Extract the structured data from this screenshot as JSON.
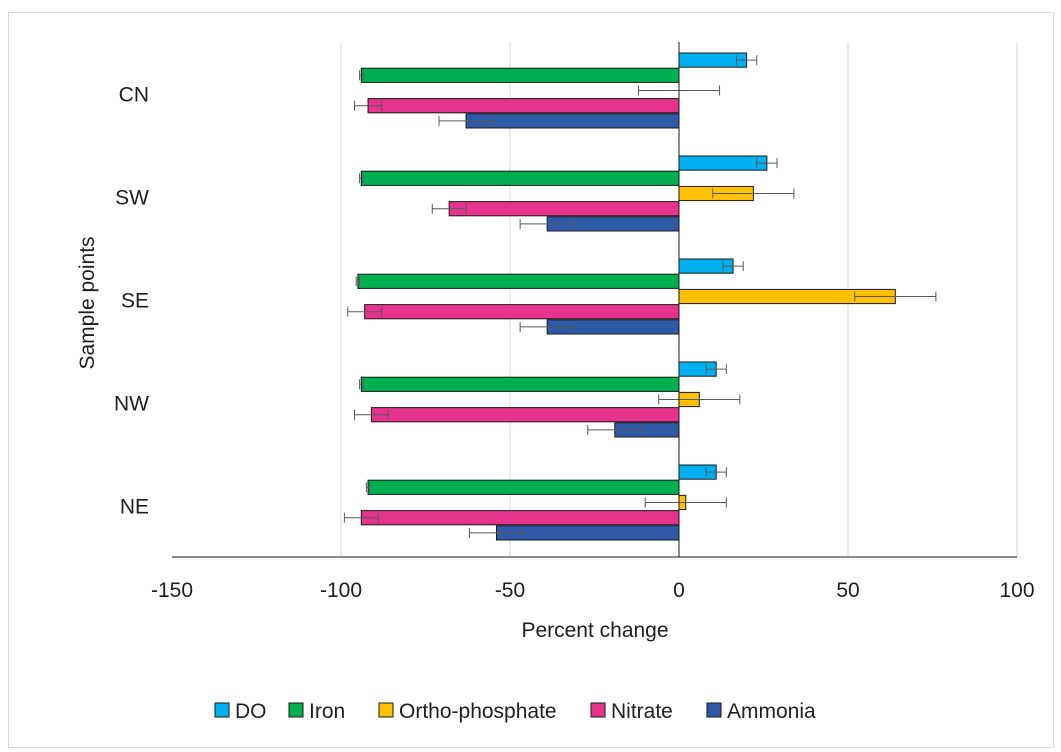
{
  "chart_data": {
    "type": "bar",
    "orientation": "horizontal",
    "title": "",
    "xlabel": "Percent change",
    "ylabel": "Sample points",
    "xlim": [
      -150,
      100
    ],
    "xticks": [
      -150,
      -100,
      -50,
      0,
      50,
      100
    ],
    "grid": "vertical",
    "legend_position": "bottom",
    "categories": [
      "CN",
      "SW",
      "SE",
      "NW",
      "NE"
    ],
    "series": [
      {
        "name": "DO",
        "color": "#00B0F0",
        "values": [
          20,
          26,
          16,
          11,
          11
        ],
        "errors": [
          3,
          3,
          3,
          3,
          3
        ]
      },
      {
        "name": "Iron",
        "color": "#00B050",
        "values": [
          -94,
          -94,
          -95,
          -94,
          -92
        ],
        "errors": [
          0.5,
          0.5,
          0.5,
          0.5,
          0.5
        ]
      },
      {
        "name": "Ortho-phosphate",
        "color": "#FFC000",
        "values": [
          0,
          22,
          64,
          6,
          2
        ],
        "errors": [
          12,
          12,
          12,
          12,
          12
        ]
      },
      {
        "name": "Nitrate",
        "color": "#E6338C",
        "values": [
          -92,
          -68,
          -93,
          -91,
          -94
        ],
        "errors": [
          4,
          5,
          5,
          5,
          5
        ]
      },
      {
        "name": "Ammonia",
        "color": "#2E5AA8",
        "values": [
          -63,
          -39,
          -39,
          -19,
          -54
        ],
        "errors": [
          8,
          8,
          8,
          8,
          8
        ]
      }
    ]
  }
}
